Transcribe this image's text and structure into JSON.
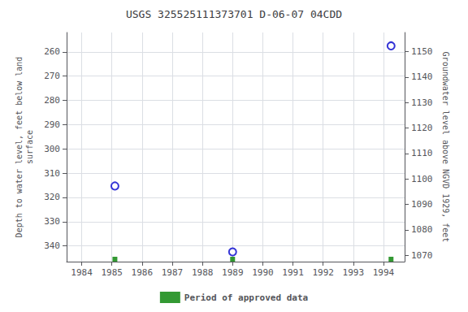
{
  "chart_data": {
    "type": "scatter",
    "title": "USGS 325525111373701 D-06-07 04CDD",
    "ylabel": "Depth to water level, feet below land\nsurface",
    "y2label": "Groundwater level above NGVD 1929, feet",
    "x": [
      1985.1,
      1989.0,
      1994.25
    ],
    "series": [
      {
        "color": "#0000cc",
        "marker": "open circle",
        "values": [
          315.3,
          342.5,
          257.5
        ]
      },
      {
        "name": "Period of approved data",
        "color": "#008000",
        "marker": "square",
        "values": [
          345.5,
          345.5,
          345.5
        ]
      }
    ],
    "xlim": [
      1983.5,
      1994.7
    ],
    "xticks": [
      1984,
      1985,
      1986,
      1987,
      1988,
      1989,
      1990,
      1991,
      1992,
      1993,
      1994
    ],
    "ylim": [
      346.5,
      252.0
    ],
    "yticks": [
      260,
      270,
      280,
      290,
      300,
      310,
      320,
      330,
      340
    ],
    "y2lim": [
      1067.5,
      1157.5
    ],
    "y2ticks": [
      1070,
      1080,
      1090,
      1100,
      1110,
      1120,
      1130,
      1140,
      1150
    ],
    "grid": true,
    "legend": "bottom"
  }
}
